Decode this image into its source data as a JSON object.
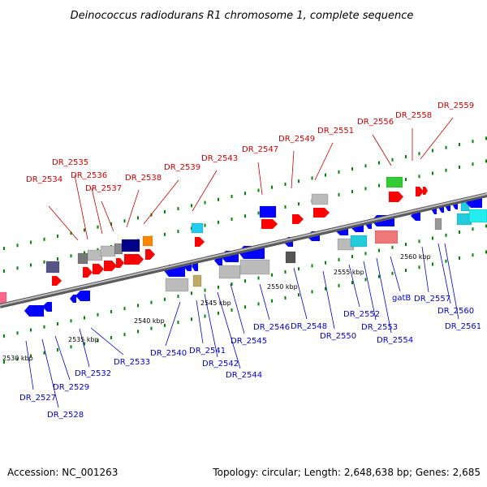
{
  "title": "Deinococcus radiodurans R1 chromosome 1, complete sequence",
  "footer": {
    "accession": "Accession: NC_001263",
    "topology": "Topology: circular; Length: 2,648,638 bp; Genes: 2,685"
  },
  "colors": {
    "forward_label": "#cc0000",
    "reverse_label": "#0000cc",
    "backbone": "#888888",
    "tick": "#008800"
  },
  "scale": {
    "ticks": [
      {
        "label": "2530 kbp"
      },
      {
        "label": "2535 kbp"
      },
      {
        "label": "2540 kbp"
      },
      {
        "label": "2545 kbp"
      },
      {
        "label": "2550 kbp"
      },
      {
        "label": "2555 kbp"
      },
      {
        "label": "2560 kbp"
      }
    ]
  },
  "genes_top": [
    {
      "label": "DR_2534",
      "color": "#ff0000"
    },
    {
      "label": "DR_2535",
      "color": "#ff0000"
    },
    {
      "label": "DR_2536",
      "color": "#ff0000"
    },
    {
      "label": "DR_2537",
      "color": "#ff0000"
    },
    {
      "label": "DR_2538",
      "color": "#ff0000"
    },
    {
      "label": "DR_2539",
      "color": "#ff0000"
    },
    {
      "label": "DR_2543",
      "color": "#ff0000"
    },
    {
      "label": "DR_2547",
      "color": "#ff0000"
    },
    {
      "label": "DR_2549",
      "color": "#ff0000"
    },
    {
      "label": "DR_2551",
      "color": "#ff0000"
    },
    {
      "label": "DR_2556",
      "color": "#ff0000"
    },
    {
      "label": "DR_2558",
      "color": "#ff0000"
    },
    {
      "label": "DR_2559",
      "color": "#ff0000"
    }
  ],
  "genes_bottom": [
    {
      "label": "DR_2527",
      "color": "#0000ff"
    },
    {
      "label": "DR_2528",
      "color": "#0000ff"
    },
    {
      "label": "DR_2529",
      "color": "#0000ff"
    },
    {
      "label": "DR_2532",
      "color": "#0000ff"
    },
    {
      "label": "DR_2533",
      "color": "#0000ff"
    },
    {
      "label": "DR_2540",
      "color": "#0000ff"
    },
    {
      "label": "DR_2541",
      "color": "#0000ff"
    },
    {
      "label": "DR_2542",
      "color": "#0000ff"
    },
    {
      "label": "DR_2544",
      "color": "#0000ff"
    },
    {
      "label": "DR_2545",
      "color": "#0000ff"
    },
    {
      "label": "DR_2546",
      "color": "#0000ff"
    },
    {
      "label": "DR_2548",
      "color": "#0000ff"
    },
    {
      "label": "DR_2550",
      "color": "#0000ff"
    },
    {
      "label": "DR_2552",
      "color": "#0000ff"
    },
    {
      "label": "DR_2553",
      "color": "#0000ff"
    },
    {
      "label": "DR_2554",
      "color": "#0000ff"
    },
    {
      "label": "gatB",
      "color": "#0000ff"
    },
    {
      "label": "DR_2557",
      "color": "#0000ff"
    },
    {
      "label": "DR_2560",
      "color": "#0000ff"
    },
    {
      "label": "DR_2561",
      "color": "#0000ff"
    }
  ]
}
